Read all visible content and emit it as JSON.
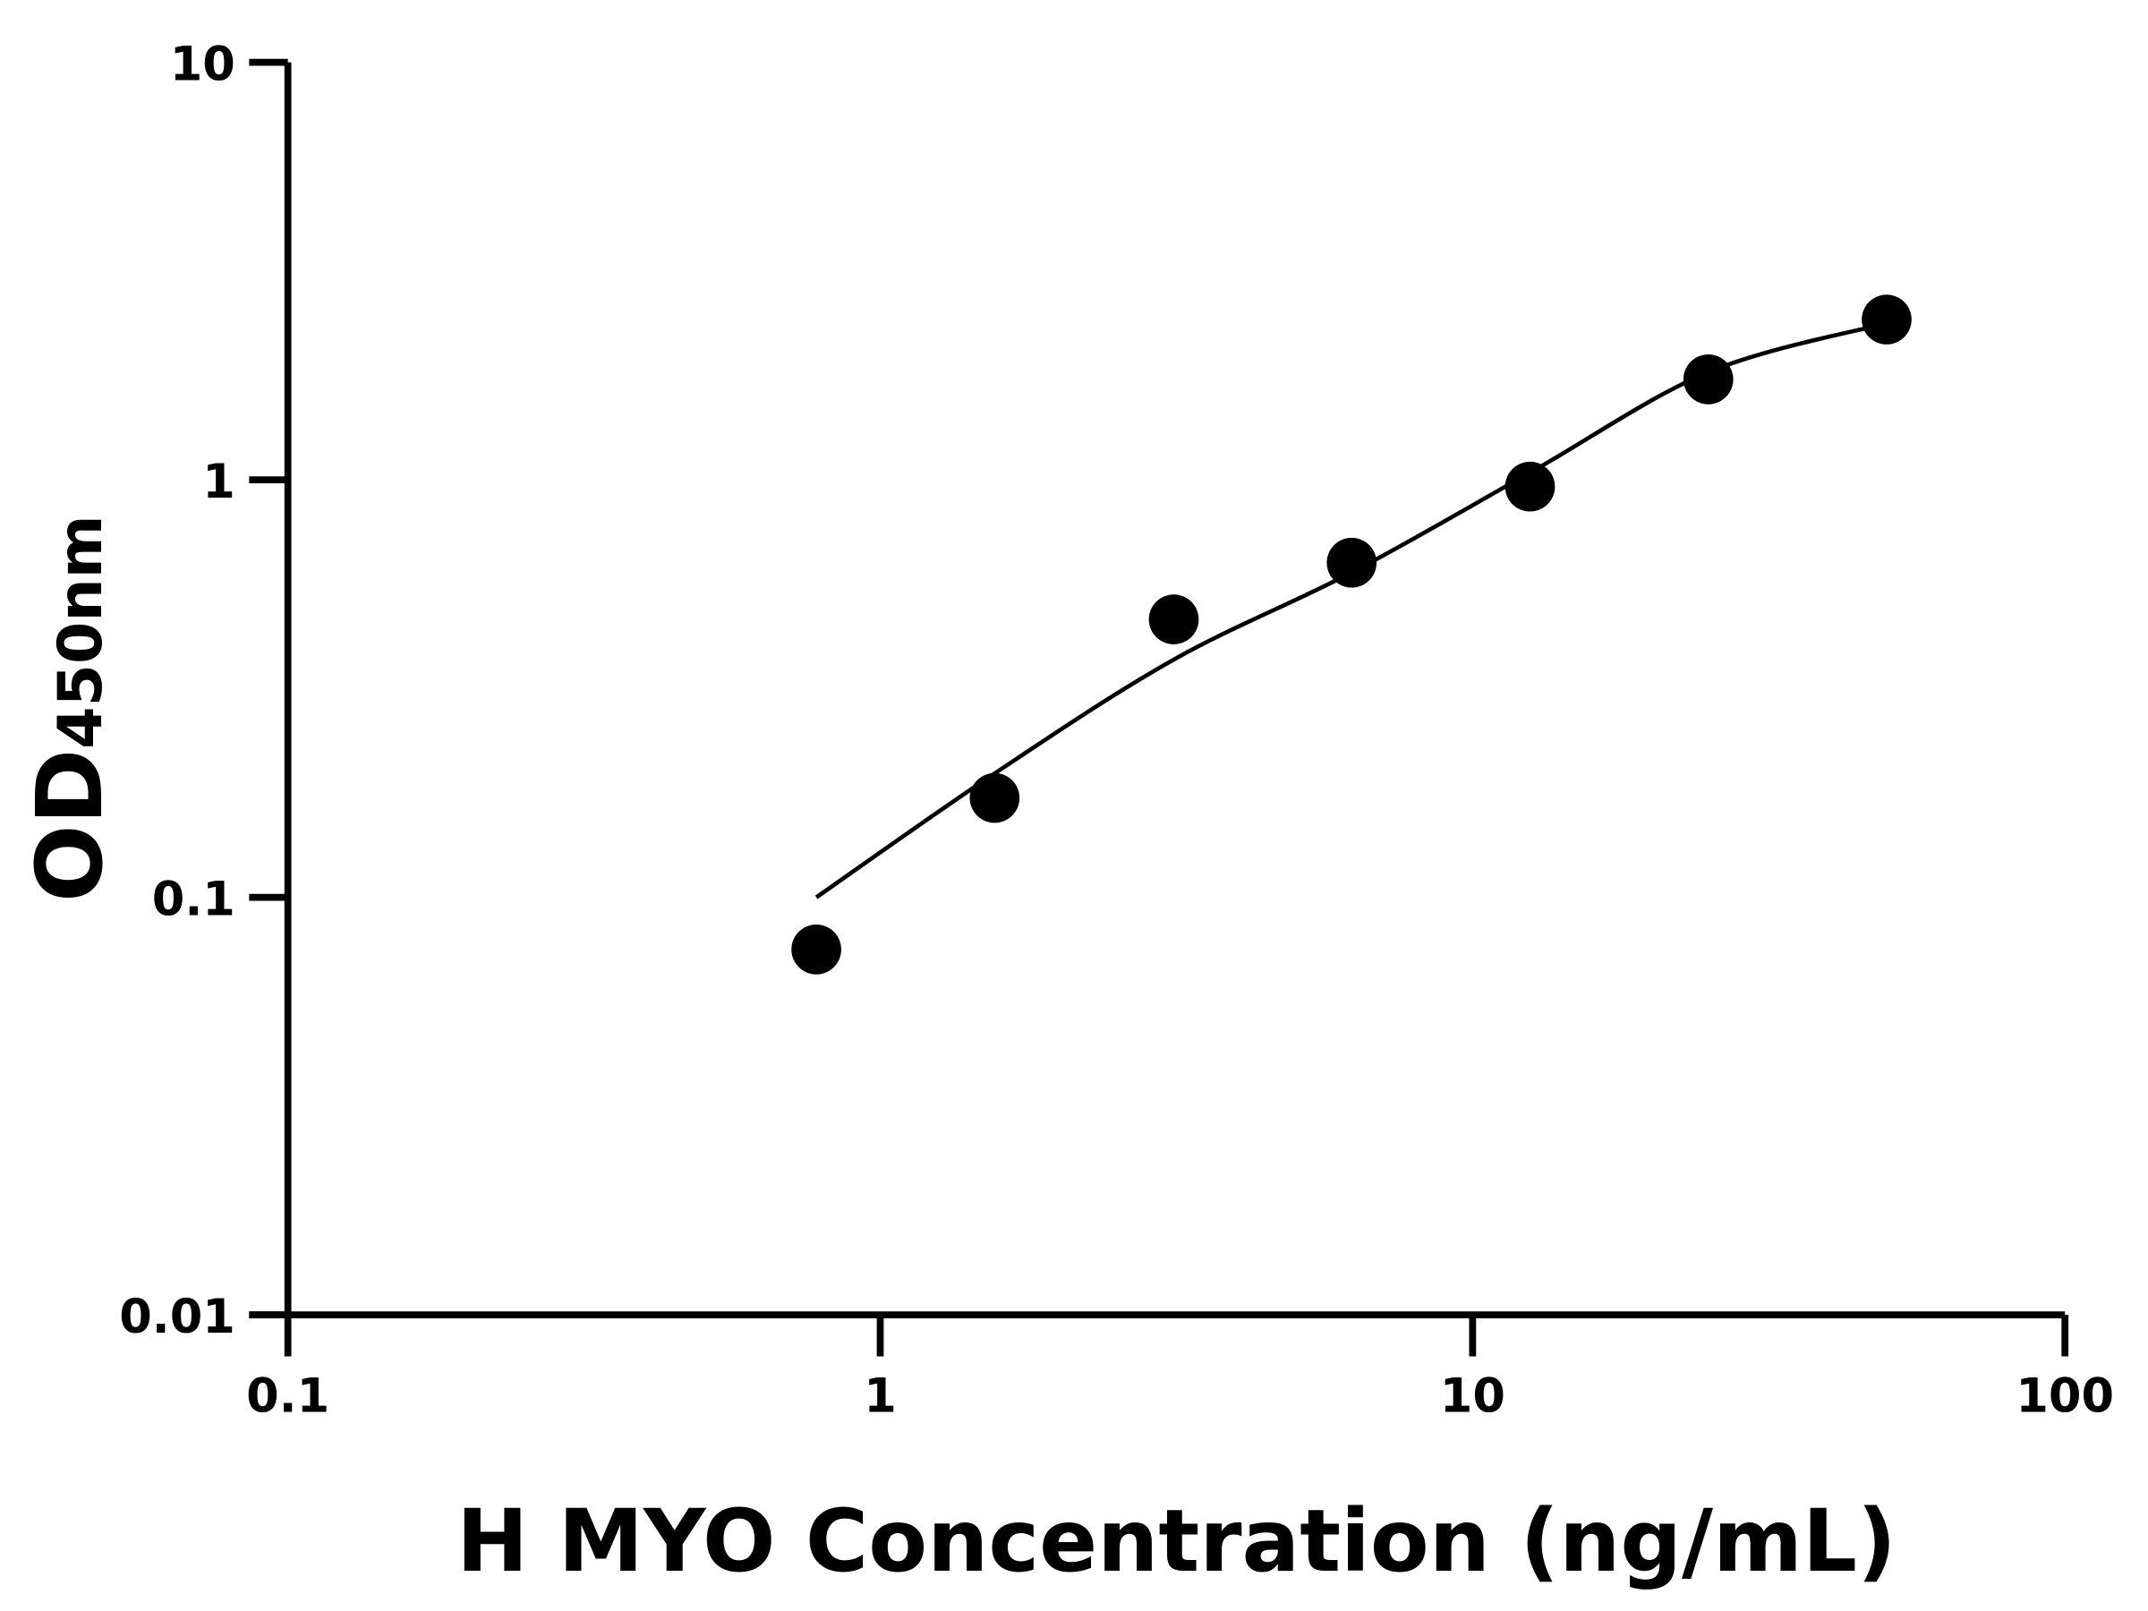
{
  "chart_data": {
    "type": "scatter",
    "title": "",
    "xlabel": "H MYO Concentration (ng/mL)",
    "ylabel_main": "OD",
    "ylabel_sub": "450nm",
    "x_scale": "log",
    "y_scale": "log",
    "xlim": [
      0.1,
      100
    ],
    "ylim": [
      0.01,
      10
    ],
    "x_ticks": [
      0.1,
      1,
      10,
      100
    ],
    "x_tick_labels": [
      "0.1",
      "1",
      "10",
      "100"
    ],
    "y_ticks": [
      0.01,
      0.1,
      1,
      10
    ],
    "y_tick_labels": [
      "0.01",
      "0.1",
      "1",
      "10"
    ],
    "grid": false,
    "points": {
      "x": [
        0.78,
        1.56,
        3.13,
        6.25,
        12.5,
        25,
        50
      ],
      "y": [
        0.075,
        0.173,
        0.463,
        0.633,
        0.963,
        1.74,
        2.42
      ]
    },
    "fit_curve": {
      "x": [
        0.78,
        1.56,
        3.13,
        6.25,
        12.5,
        25,
        50
      ],
      "y": [
        0.1,
        0.198,
        0.371,
        0.6,
        1.04,
        1.81,
        2.37
      ]
    },
    "colors": {
      "points": "#000000",
      "line": "#000000",
      "axes": "#000000"
    }
  }
}
